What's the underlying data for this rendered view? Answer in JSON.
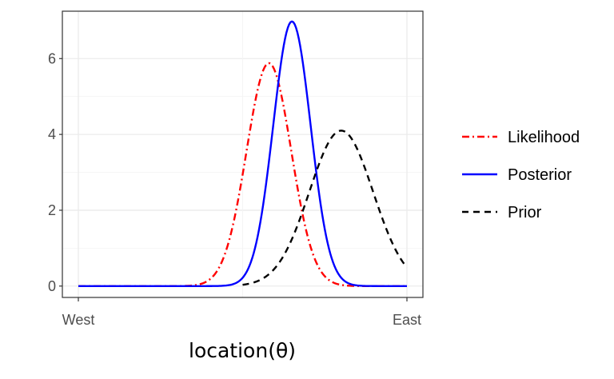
{
  "chart_data": {
    "type": "line",
    "xlabel": "location(θ)",
    "ylabel": "",
    "x_ticks": [
      "West",
      "East"
    ],
    "xlim": [
      0,
      1
    ],
    "ylim": [
      -0.3,
      7.25
    ],
    "y_ticks": [
      0,
      2,
      4,
      6
    ],
    "grid": true,
    "legend_position": "right",
    "series": [
      {
        "name": "Likelihood",
        "color": "#ff0000",
        "dash": "dashdot",
        "mean": 0.58,
        "sd": 0.068,
        "peak": 5.88,
        "x_start": 0.0,
        "x_end": 1.0
      },
      {
        "name": "Posterior",
        "color": "#0000ff",
        "dash": "solid",
        "mean": 0.65,
        "sd": 0.057,
        "peak": 6.98,
        "x_start": 0.0,
        "x_end": 1.0
      },
      {
        "name": "Prior",
        "color": "#000000",
        "dash": "dashed",
        "mean": 0.8,
        "sd": 0.097,
        "peak": 4.1,
        "x_start": 0.5,
        "x_end": 1.0
      }
    ]
  }
}
